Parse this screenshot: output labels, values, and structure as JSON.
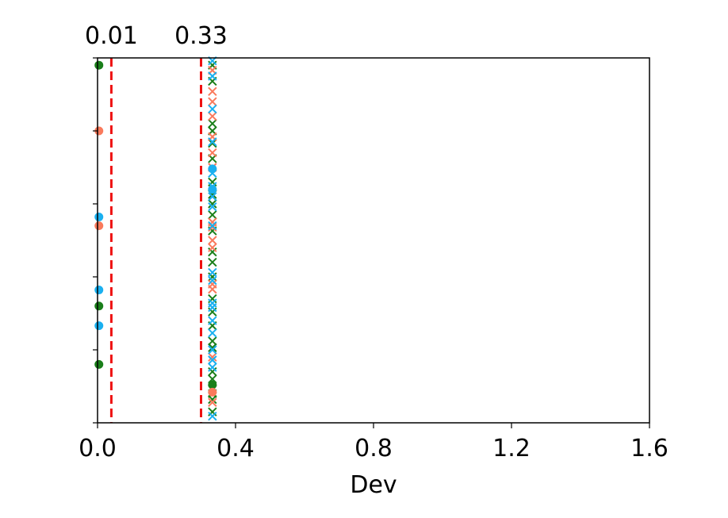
{
  "chart_data": {
    "type": "scatter",
    "xlabel": "Dev",
    "ylabel": "",
    "xlim": [
      0,
      1.6
    ],
    "ylim": [
      0,
      50
    ],
    "xticks": [
      {
        "value": 0.0,
        "label": "0.0"
      },
      {
        "value": 0.4,
        "label": "0.4"
      },
      {
        "value": 0.8,
        "label": "0.8"
      },
      {
        "value": 1.2,
        "label": "1.2"
      },
      {
        "value": 1.6,
        "label": "1.6"
      }
    ],
    "yticks": [
      0,
      10,
      20,
      30,
      40,
      50
    ],
    "grid": false,
    "legend": "none",
    "reference_lines": [
      {
        "x": 0.04,
        "label": "0.01",
        "color": "#ee1111",
        "style": "dashed"
      },
      {
        "x": 0.3,
        "label": "0.33",
        "color": "#ee1111",
        "style": "dashed"
      }
    ],
    "series": [
      {
        "color": "#1a7f1a",
        "marker": "x",
        "points": [
          {
            "x": 0.333,
            "y": 49.0
          },
          {
            "x": 0.333,
            "y": 46.8
          },
          {
            "x": 0.333,
            "y": 41.0
          },
          {
            "x": 0.333,
            "y": 40.0
          },
          {
            "x": 0.333,
            "y": 38.3
          },
          {
            "x": 0.333,
            "y": 36.2
          },
          {
            "x": 0.333,
            "y": 33.0
          },
          {
            "x": 0.333,
            "y": 31.3
          },
          {
            "x": 0.333,
            "y": 30.0
          },
          {
            "x": 0.333,
            "y": 28.5
          },
          {
            "x": 0.333,
            "y": 26.3
          },
          {
            "x": 0.333,
            "y": 23.4
          },
          {
            "x": 0.333,
            "y": 22.0
          },
          {
            "x": 0.333,
            "y": 20.0
          },
          {
            "x": 0.333,
            "y": 17.0
          },
          {
            "x": 0.333,
            "y": 15.2
          },
          {
            "x": 0.333,
            "y": 13.3
          },
          {
            "x": 0.333,
            "y": 11.2
          },
          {
            "x": 0.333,
            "y": 10.3
          },
          {
            "x": 0.333,
            "y": 7.0
          },
          {
            "x": 0.333,
            "y": 6.0
          },
          {
            "x": 0.333,
            "y": 4.6
          },
          {
            "x": 0.333,
            "y": 4.0
          },
          {
            "x": 0.333,
            "y": 3.2
          },
          {
            "x": 0.333,
            "y": 1.5
          }
        ]
      },
      {
        "color": "#1a7f1a",
        "marker": "o",
        "points": [
          {
            "x": 0.004,
            "y": 49.0
          },
          {
            "x": 0.004,
            "y": 16.0
          },
          {
            "x": 0.004,
            "y": 8.0
          },
          {
            "x": 0.333,
            "y": 5.2
          }
        ]
      },
      {
        "color": "#fa7a5c",
        "marker": "x",
        "points": [
          {
            "x": 0.333,
            "y": 48.3
          },
          {
            "x": 0.333,
            "y": 45.4
          },
          {
            "x": 0.333,
            "y": 44.0
          },
          {
            "x": 0.333,
            "y": 42.0
          },
          {
            "x": 0.333,
            "y": 39.2
          },
          {
            "x": 0.333,
            "y": 37.0
          },
          {
            "x": 0.333,
            "y": 35.0
          },
          {
            "x": 0.333,
            "y": 27.5
          },
          {
            "x": 0.333,
            "y": 26.8
          },
          {
            "x": 0.333,
            "y": 25.0
          },
          {
            "x": 0.333,
            "y": 24.0
          },
          {
            "x": 0.333,
            "y": 19.0
          },
          {
            "x": 0.333,
            "y": 18.3
          },
          {
            "x": 0.333,
            "y": 9.0
          },
          {
            "x": 0.333,
            "y": 2.8
          }
        ]
      },
      {
        "color": "#fa7a5c",
        "marker": "o",
        "points": [
          {
            "x": 0.004,
            "y": 40.0
          },
          {
            "x": 0.004,
            "y": 27.0
          },
          {
            "x": 0.333,
            "y": 4.2
          }
        ]
      },
      {
        "color": "#1ab0f0",
        "marker": "x",
        "points": [
          {
            "x": 0.333,
            "y": 49.6
          },
          {
            "x": 0.333,
            "y": 47.5
          },
          {
            "x": 0.333,
            "y": 43.0
          },
          {
            "x": 0.333,
            "y": 38.5
          },
          {
            "x": 0.333,
            "y": 34.2
          },
          {
            "x": 0.333,
            "y": 32.4
          },
          {
            "x": 0.333,
            "y": 31.0
          },
          {
            "x": 0.333,
            "y": 29.6
          },
          {
            "x": 0.333,
            "y": 27.0
          },
          {
            "x": 0.333,
            "y": 20.6
          },
          {
            "x": 0.333,
            "y": 19.5
          },
          {
            "x": 0.333,
            "y": 16.4
          },
          {
            "x": 0.333,
            "y": 15.8
          },
          {
            "x": 0.333,
            "y": 14.0
          },
          {
            "x": 0.333,
            "y": 12.3
          },
          {
            "x": 0.333,
            "y": 10.0
          },
          {
            "x": 0.333,
            "y": 8.6
          },
          {
            "x": 0.333,
            "y": 7.6
          },
          {
            "x": 0.333,
            "y": 0.9
          }
        ]
      },
      {
        "color": "#1ab0f0",
        "marker": "o",
        "points": [
          {
            "x": 0.004,
            "y": 28.2
          },
          {
            "x": 0.004,
            "y": 18.2
          },
          {
            "x": 0.004,
            "y": 13.3
          },
          {
            "x": 0.333,
            "y": 34.8
          },
          {
            "x": 0.333,
            "y": 32.0
          }
        ]
      }
    ]
  }
}
